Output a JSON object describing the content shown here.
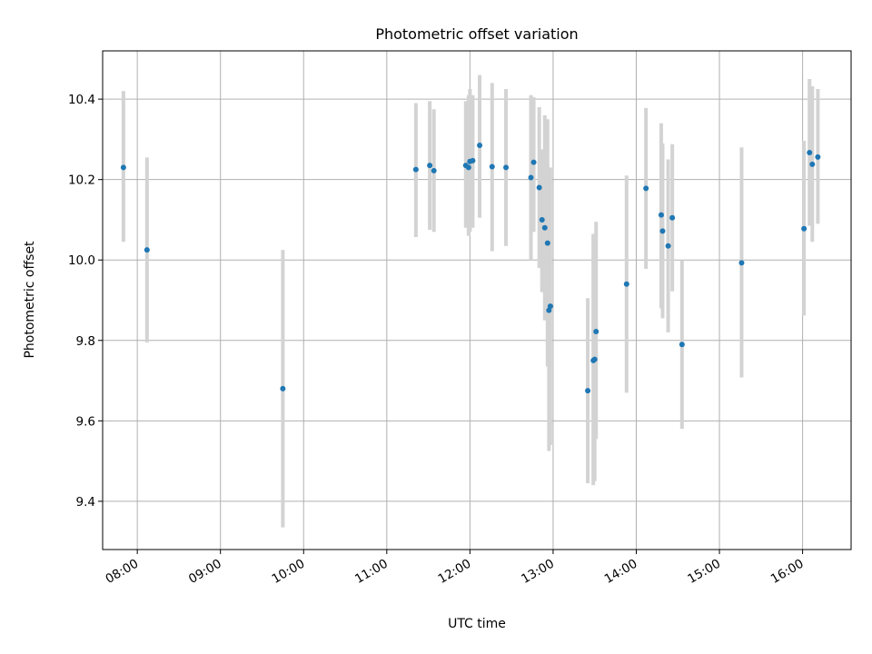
{
  "chart_data": {
    "type": "scatter",
    "title": "Photometric offset variation",
    "xlabel": "UTC time",
    "ylabel": "Photometric offset",
    "xlim": [
      "07:35",
      "16:35"
    ],
    "ylim": [
      9.28,
      10.52
    ],
    "x_ticks": [
      "08:00",
      "09:00",
      "10:00",
      "11:00",
      "12:00",
      "13:00",
      "14:00",
      "15:00",
      "16:00"
    ],
    "y_ticks": [
      9.4,
      9.6,
      9.8,
      10.0,
      10.2,
      10.4
    ],
    "y_tick_labels": [
      "9.4",
      "9.6",
      "9.8",
      "10.0",
      "10.2",
      "10.4"
    ],
    "grid": true,
    "colors": {
      "point": "#1f77b4",
      "errorbar": "#d3d3d3",
      "grid": "#b0b0b0"
    },
    "points": [
      {
        "x": "07:50",
        "y": 10.23,
        "err_low": 10.045,
        "err_high": 10.42
      },
      {
        "x": "08:07",
        "y": 10.025,
        "err_low": 9.795,
        "err_high": 10.255
      },
      {
        "x": "09:45",
        "y": 9.68,
        "err_low": 9.335,
        "err_high": 10.025
      },
      {
        "x": "11:21",
        "y": 10.225,
        "err_low": 10.057,
        "err_high": 10.39
      },
      {
        "x": "11:31",
        "y": 10.235,
        "err_low": 10.075,
        "err_high": 10.395
      },
      {
        "x": "11:34",
        "y": 10.222,
        "err_low": 10.07,
        "err_high": 10.375
      },
      {
        "x": "11:57",
        "y": 10.235,
        "err_low": 10.08,
        "err_high": 10.395
      },
      {
        "x": "11:59",
        "y": 10.23,
        "err_low": 10.06,
        "err_high": 10.41
      },
      {
        "x": "12:00",
        "y": 10.245,
        "err_low": 10.07,
        "err_high": 10.425
      },
      {
        "x": "12:02",
        "y": 10.247,
        "err_low": 10.08,
        "err_high": 10.41
      },
      {
        "x": "12:07",
        "y": 10.285,
        "err_low": 10.105,
        "err_high": 10.46
      },
      {
        "x": "12:16",
        "y": 10.232,
        "err_low": 10.022,
        "err_high": 10.44
      },
      {
        "x": "12:26",
        "y": 10.23,
        "err_low": 10.035,
        "err_high": 10.425
      },
      {
        "x": "12:44",
        "y": 10.205,
        "err_low": 10.0,
        "err_high": 10.41
      },
      {
        "x": "12:46",
        "y": 10.243,
        "err_low": 10.07,
        "err_high": 10.405
      },
      {
        "x": "12:50",
        "y": 10.18,
        "err_low": 9.98,
        "err_high": 10.38
      },
      {
        "x": "12:52",
        "y": 10.1,
        "err_low": 9.92,
        "err_high": 10.275
      },
      {
        "x": "12:54",
        "y": 10.08,
        "err_low": 9.85,
        "err_high": 10.36
      },
      {
        "x": "12:56",
        "y": 10.042,
        "err_low": 9.735,
        "err_high": 10.35
      },
      {
        "x": "12:57",
        "y": 9.875,
        "err_low": 9.525,
        "err_high": 10.22
      },
      {
        "x": "12:58",
        "y": 9.885,
        "err_low": 9.54,
        "err_high": 10.23
      },
      {
        "x": "13:25",
        "y": 9.675,
        "err_low": 9.445,
        "err_high": 9.905
      },
      {
        "x": "13:29",
        "y": 9.75,
        "err_low": 9.44,
        "err_high": 10.065
      },
      {
        "x": "13:30",
        "y": 9.753,
        "err_low": 9.45,
        "err_high": 10.06
      },
      {
        "x": "13:31",
        "y": 9.822,
        "err_low": 9.555,
        "err_high": 10.095
      },
      {
        "x": "13:53",
        "y": 9.94,
        "err_low": 9.67,
        "err_high": 10.21
      },
      {
        "x": "14:07",
        "y": 10.178,
        "err_low": 9.978,
        "err_high": 10.378
      },
      {
        "x": "14:18",
        "y": 10.112,
        "err_low": 9.88,
        "err_high": 10.34
      },
      {
        "x": "14:19",
        "y": 10.072,
        "err_low": 9.855,
        "err_high": 10.29
      },
      {
        "x": "14:23",
        "y": 10.035,
        "err_low": 9.82,
        "err_high": 10.25
      },
      {
        "x": "14:26",
        "y": 10.105,
        "err_low": 9.922,
        "err_high": 10.288
      },
      {
        "x": "14:33",
        "y": 9.79,
        "err_low": 9.58,
        "err_high": 10.0
      },
      {
        "x": "15:16",
        "y": 9.993,
        "err_low": 9.708,
        "err_high": 10.28
      },
      {
        "x": "16:01",
        "y": 10.078,
        "err_low": 9.862,
        "err_high": 10.296
      },
      {
        "x": "16:05",
        "y": 10.267,
        "err_low": 10.085,
        "err_high": 10.45
      },
      {
        "x": "16:07",
        "y": 10.238,
        "err_low": 10.045,
        "err_high": 10.432
      },
      {
        "x": "16:11",
        "y": 10.256,
        "err_low": 10.09,
        "err_high": 10.425
      }
    ]
  }
}
